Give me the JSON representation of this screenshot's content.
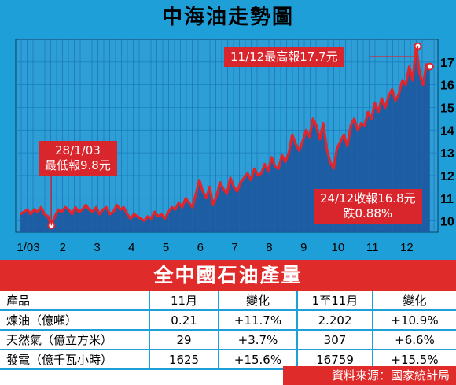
{
  "title": "中海油走勢圖",
  "chart_data": {
    "type": "line",
    "y_ticks": [
      "10",
      "11",
      "12",
      "13",
      "14",
      "15",
      "16",
      "17"
    ],
    "x_ticks": [
      "1/03",
      "2",
      "3",
      "4",
      "5",
      "6",
      "7",
      "8",
      "9",
      "10",
      "11",
      "12"
    ],
    "ylim": [
      9.5,
      18.0
    ],
    "y_axis_side": "right",
    "grid": true,
    "series": [
      {
        "x": [
          0,
          0.1,
          0.2,
          0.3,
          0.4,
          0.5,
          0.6,
          0.7,
          0.8,
          0.9,
          1.0,
          1.1,
          1.2,
          1.3,
          1.4,
          1.5,
          1.6,
          1.7,
          1.8,
          1.9,
          2.0,
          2.1,
          2.2,
          2.3,
          2.4,
          2.5,
          2.6,
          2.7,
          2.8,
          2.9,
          3.0,
          3.1,
          3.2,
          3.3,
          3.4,
          3.5,
          3.6,
          3.7,
          3.8,
          3.9,
          4.0,
          4.1,
          4.2,
          4.3,
          4.4,
          4.5,
          4.6,
          4.7,
          4.8,
          4.9,
          5.0,
          5.1,
          5.2,
          5.3,
          5.4,
          5.5,
          5.6,
          5.7,
          5.8,
          5.9,
          6.0,
          6.1,
          6.2,
          6.3,
          6.4,
          6.5,
          6.6,
          6.7,
          6.8,
          6.9,
          7.0,
          7.1,
          7.2,
          7.3,
          7.4,
          7.5,
          7.6,
          7.7,
          7.8,
          7.9,
          8.0,
          8.1,
          8.2,
          8.3,
          8.4,
          8.5,
          8.6,
          8.7,
          8.8,
          8.9,
          9.0,
          9.1,
          9.2,
          9.3,
          9.4,
          9.5,
          9.6,
          9.7,
          9.8,
          9.9,
          10.0,
          10.1,
          10.2,
          10.3,
          10.4,
          10.5,
          10.6,
          10.7,
          10.8,
          10.9,
          11.0,
          11.1,
          11.2,
          11.3,
          11.4,
          11.5,
          11.6,
          11.7,
          11.8,
          11.9
        ],
        "values": [
          10.3,
          10.4,
          10.5,
          10.3,
          10.5,
          10.4,
          10.6,
          10.3,
          10.2,
          9.8,
          10.2,
          10.5,
          10.4,
          10.6,
          10.5,
          10.3,
          10.6,
          10.4,
          10.5,
          10.7,
          10.5,
          10.4,
          10.6,
          10.3,
          10.5,
          10.6,
          10.3,
          10.4,
          10.7,
          10.5,
          10.6,
          10.3,
          10.1,
          10.3,
          10.2,
          10.1,
          10.0,
          10.2,
          10.1,
          10.4,
          10.2,
          10.3,
          10.1,
          10.4,
          10.6,
          10.5,
          10.8,
          10.6,
          11.0,
          10.8,
          10.6,
          11.2,
          11.8,
          11.3,
          11.0,
          11.5,
          10.7,
          11.1,
          11.7,
          11.4,
          11.2,
          11.9,
          11.5,
          11.3,
          11.7,
          11.9,
          12.1,
          11.8,
          12.3,
          12.0,
          12.1,
          12.5,
          12.2,
          12.8,
          12.4,
          12.3,
          12.9,
          12.6,
          13.0,
          13.8,
          13.4,
          13.1,
          13.5,
          14.0,
          13.7,
          14.5,
          14.2,
          13.6,
          14.3,
          13.2,
          12.6,
          12.3,
          13.2,
          13.5,
          13.8,
          13.3,
          14.2,
          14.5,
          14.0,
          14.3,
          14.2,
          14.8,
          14.5,
          15.2,
          14.8,
          15.4,
          15.0,
          15.5,
          15.8,
          15.3,
          15.6,
          16.2,
          16.0,
          16.8,
          16.2,
          17.7,
          16.5,
          16.0,
          16.9,
          16.8
        ]
      }
    ],
    "annotations": [
      {
        "lines": [
          "11/12最高報17.7元"
        ],
        "x": 11.55,
        "y": 17.7
      },
      {
        "lines": [
          "28/1/03",
          "最低報9.8元"
        ],
        "x": 0.9,
        "y": 9.8
      },
      {
        "lines": [
          "24/12收報16.8元",
          "跌0.88%"
        ],
        "x": 11.9,
        "y": 16.8
      }
    ]
  },
  "table": {
    "title": "全中國石油產量",
    "headers": [
      "產品",
      "11月",
      "變化",
      "1至11月",
      "變化"
    ],
    "rows": [
      [
        "煉油（億噸）",
        "0.21",
        "+11.7%",
        "2.202",
        "+10.9%"
      ],
      [
        "天然氣（億立方米）",
        "29",
        "+3.7%",
        "307",
        "+6.6%"
      ],
      [
        "發電（億千瓦小時）",
        "1625",
        "+15.6%",
        "16759",
        "+15.5%"
      ]
    ]
  },
  "source": "資料來源：國家統計局",
  "colors": {
    "frame": "#1f9fd8",
    "plot_bg": "#2d9fd6",
    "plot_fill": "#1c5aa0",
    "line": "#e0262c",
    "red_label": "#d9262c"
  }
}
